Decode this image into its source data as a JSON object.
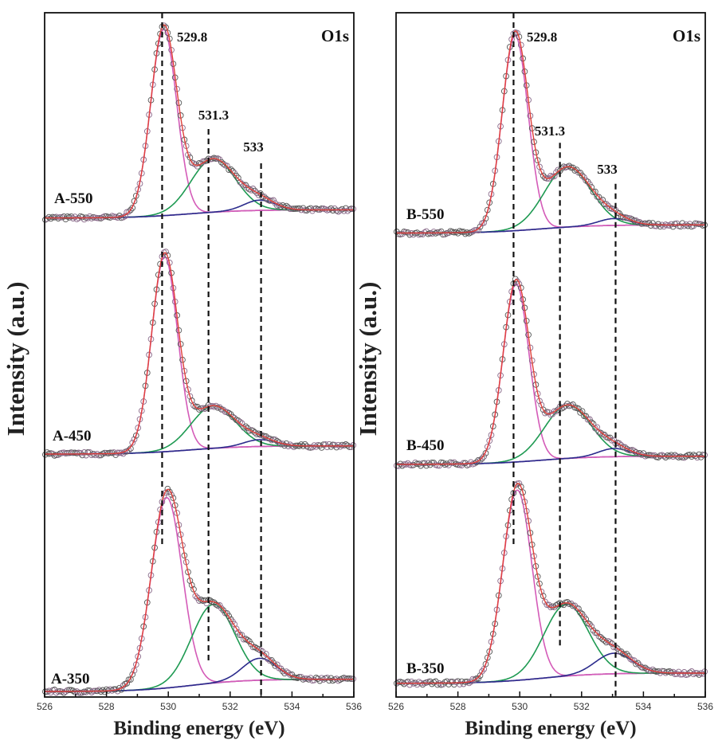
{
  "chart_data": [
    {
      "type": "line",
      "xlabel": "Binding energy (eV)",
      "ylabel": "Intensity (a.u.)",
      "xlim": [
        526,
        536
      ],
      "xticks": [
        526,
        528,
        530,
        532,
        534,
        536
      ],
      "xticks_minor_step": 1,
      "ylim": [
        0,
        10
      ],
      "grid": false,
      "core_level": "O1s",
      "peak_lines": [
        {
          "label": "529.8",
          "x": 529.8,
          "y_range": [
            2.2,
            10
          ]
        },
        {
          "label": "531.3",
          "x": 531.3,
          "y_range": [
            0.5,
            8.3
          ]
        },
        {
          "label": "533",
          "x": 533,
          "y_range": [
            0,
            7.8
          ]
        }
      ],
      "spectra": [
        {
          "label": "A-550",
          "offset": 7.0,
          "background_step": 0.12,
          "components": [
            {
              "center": 529.85,
              "height": 2.72,
              "sigma": 0.42,
              "color": "#d45bb8"
            },
            {
              "center": 531.45,
              "height": 0.78,
              "sigma": 0.72,
              "color": "#1e9a52"
            },
            {
              "center": 532.95,
              "height": 0.15,
              "sigma": 0.5,
              "color": "#2b2b8c"
            }
          ]
        },
        {
          "label": "A-450",
          "offset": 3.55,
          "background_step": 0.12,
          "components": [
            {
              "center": 529.88,
              "height": 2.85,
              "sigma": 0.42,
              "color": "#d45bb8"
            },
            {
              "center": 531.45,
              "height": 0.62,
              "sigma": 0.72,
              "color": "#1e9a52"
            },
            {
              "center": 532.95,
              "height": 0.1,
              "sigma": 0.5,
              "color": "#2b2b8c"
            }
          ]
        },
        {
          "label": "A-350",
          "offset": 0.08,
          "background_step": 0.18,
          "components": [
            {
              "center": 529.95,
              "height": 2.78,
              "sigma": 0.5,
              "color": "#d45bb8"
            },
            {
              "center": 531.45,
              "height": 1.15,
              "sigma": 0.7,
              "color": "#1e9a52"
            },
            {
              "center": 532.95,
              "height": 0.32,
              "sigma": 0.55,
              "color": "#2b2b8c"
            }
          ]
        }
      ]
    },
    {
      "type": "line",
      "xlabel": "Binding energy (eV)",
      "ylabel": "Intensity (a.u.)",
      "xlim": [
        526,
        536
      ],
      "xticks": [
        526,
        528,
        530,
        532,
        534,
        536
      ],
      "xticks_minor_step": 1,
      "ylim": [
        0,
        10
      ],
      "grid": false,
      "core_level": "O1s",
      "peak_lines": [
        {
          "label": "529.8",
          "x": 529.8,
          "y_range": [
            2.2,
            10
          ]
        },
        {
          "label": "531.3",
          "x": 531.3,
          "y_range": [
            0.7,
            8.1
          ]
        },
        {
          "label": "533",
          "x": 533.1,
          "y_range": [
            0,
            7.5
          ]
        }
      ],
      "spectra": [
        {
          "label": "B-550",
          "offset": 6.78,
          "background_step": 0.12,
          "components": [
            {
              "center": 529.85,
              "height": 2.85,
              "sigma": 0.42,
              "color": "#d45bb8"
            },
            {
              "center": 531.55,
              "height": 0.88,
              "sigma": 0.75,
              "color": "#1e9a52"
            },
            {
              "center": 533.05,
              "height": 0.1,
              "sigma": 0.5,
              "color": "#2b2b8c"
            }
          ]
        },
        {
          "label": "B-450",
          "offset": 3.4,
          "background_step": 0.12,
          "components": [
            {
              "center": 529.88,
              "height": 2.6,
              "sigma": 0.42,
              "color": "#d45bb8"
            },
            {
              "center": 531.55,
              "height": 0.78,
              "sigma": 0.75,
              "color": "#1e9a52"
            },
            {
              "center": 533.05,
              "height": 0.12,
              "sigma": 0.5,
              "color": "#2b2b8c"
            }
          ]
        },
        {
          "label": "B-350",
          "offset": 0.2,
          "background_step": 0.15,
          "components": [
            {
              "center": 529.92,
              "height": 2.78,
              "sigma": 0.47,
              "color": "#d45bb8"
            },
            {
              "center": 531.5,
              "height": 1.05,
              "sigma": 0.72,
              "color": "#1e9a52"
            },
            {
              "center": 533.05,
              "height": 0.3,
              "sigma": 0.6,
              "color": "#2b2b8c"
            }
          ]
        }
      ]
    }
  ],
  "colors": {
    "envelope": "#e0403a",
    "data_markers": "#8a6a8a",
    "background": "#9a4aa8"
  }
}
